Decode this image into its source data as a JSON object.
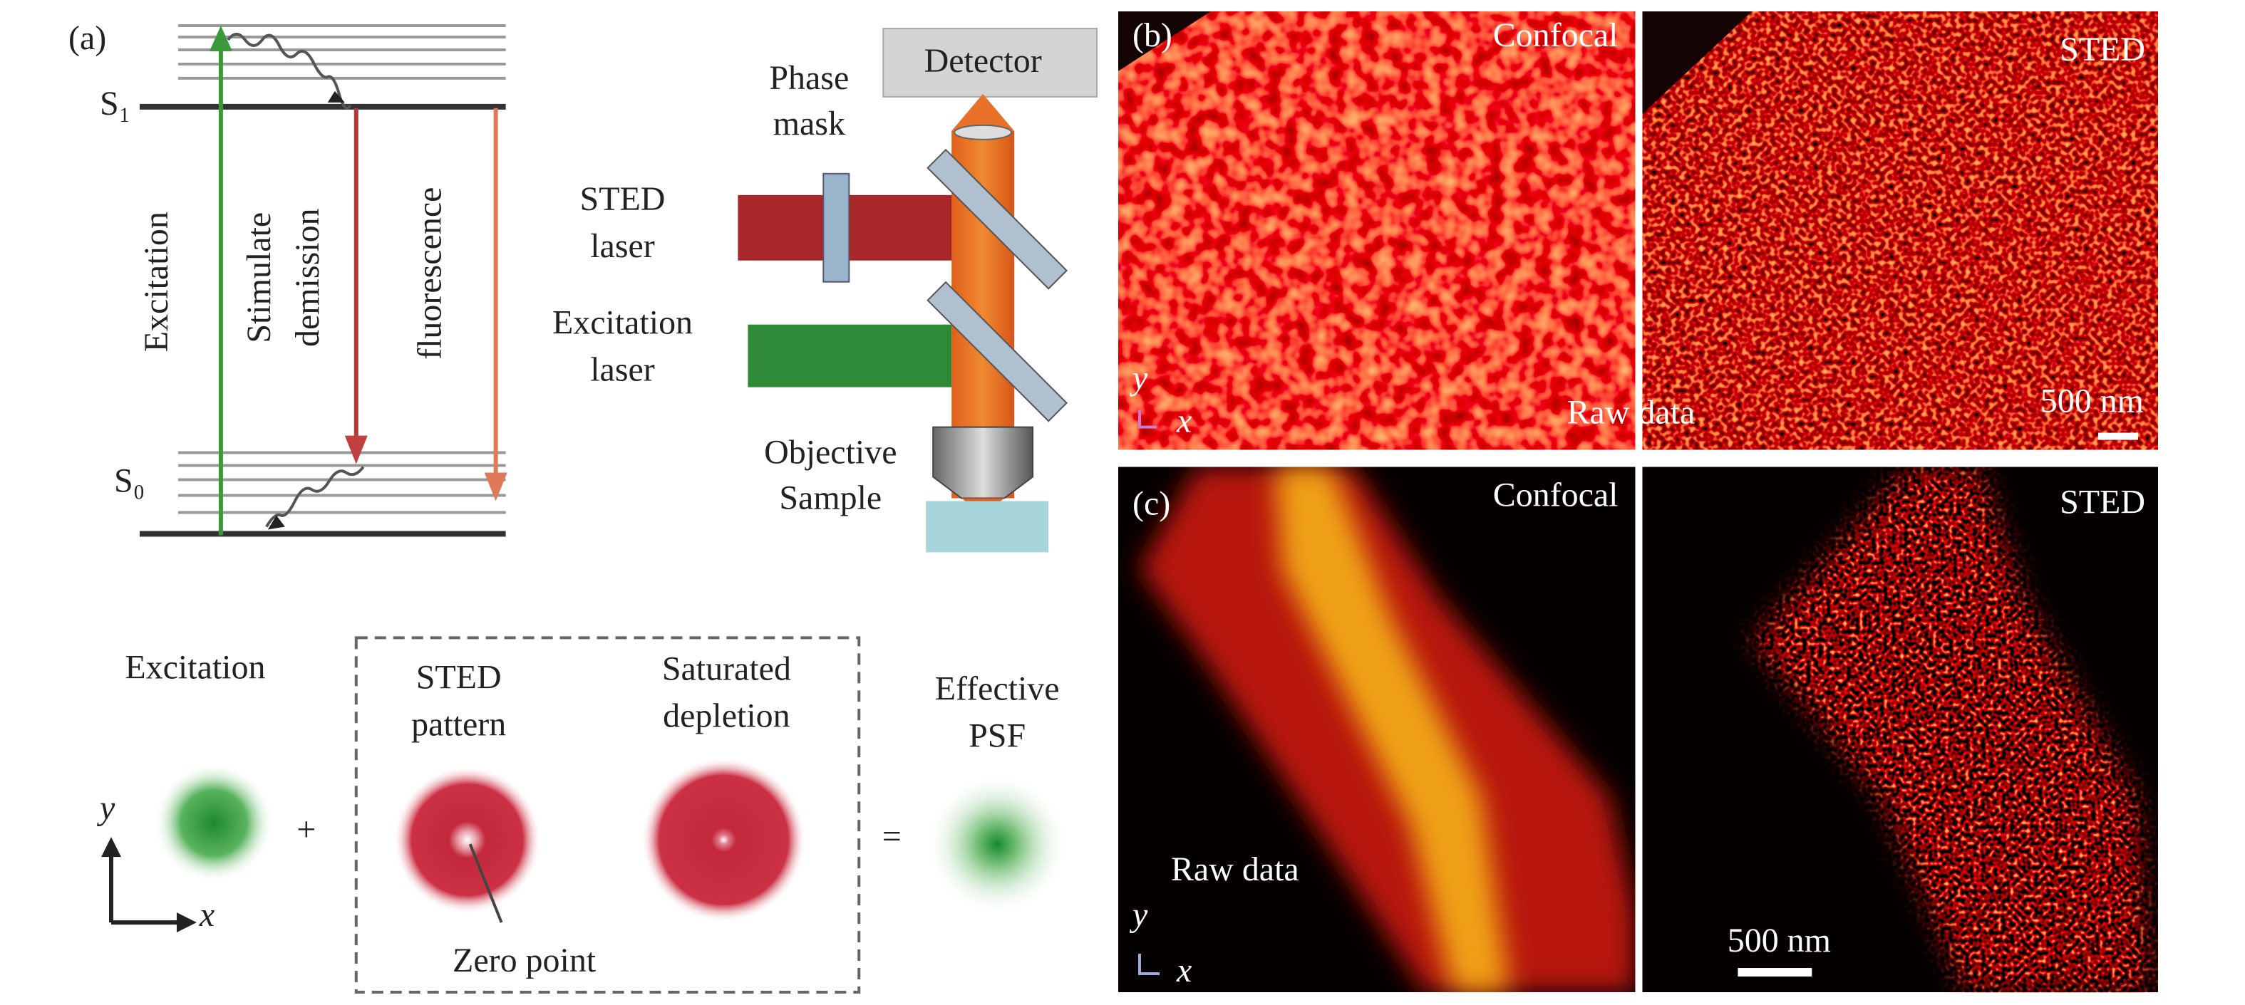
{
  "panel_a": {
    "label": "(a)",
    "energy_levels": {
      "s1": "S₁",
      "s0": "S₀"
    },
    "transitions": {
      "excitation": "Excitation",
      "stimulated": [
        "Stimulate",
        "demission"
      ],
      "fluorescence": "fluorescence"
    },
    "setup": {
      "detector": "Detector",
      "phase_mask": [
        "Phase",
        "mask"
      ],
      "sted_laser": [
        "STED",
        "laser"
      ],
      "excitation_laser": [
        "Excitation",
        "laser"
      ],
      "objective": "Objective",
      "sample": "Sample"
    },
    "psf": {
      "excitation": "Excitation",
      "sted_pattern": [
        "STED",
        "pattern"
      ],
      "saturated": [
        "Saturated",
        "depletion"
      ],
      "effective": [
        "Effective",
        "PSF"
      ],
      "zero_point": "Zero point",
      "plus": "+",
      "equals": "=",
      "axis_y": "y",
      "axis_x": "x"
    }
  },
  "panel_b": {
    "label": "(b)",
    "left": "Confocal",
    "right": "STED",
    "raw": "Raw data",
    "scale": "500 nm",
    "axis_y": "y",
    "axis_x": "x"
  },
  "panel_c": {
    "label": "(c)",
    "left": "Confocal",
    "right": "STED",
    "raw": "Raw data",
    "scale": "500 nm",
    "axis_y": "y",
    "axis_x": "x"
  }
}
